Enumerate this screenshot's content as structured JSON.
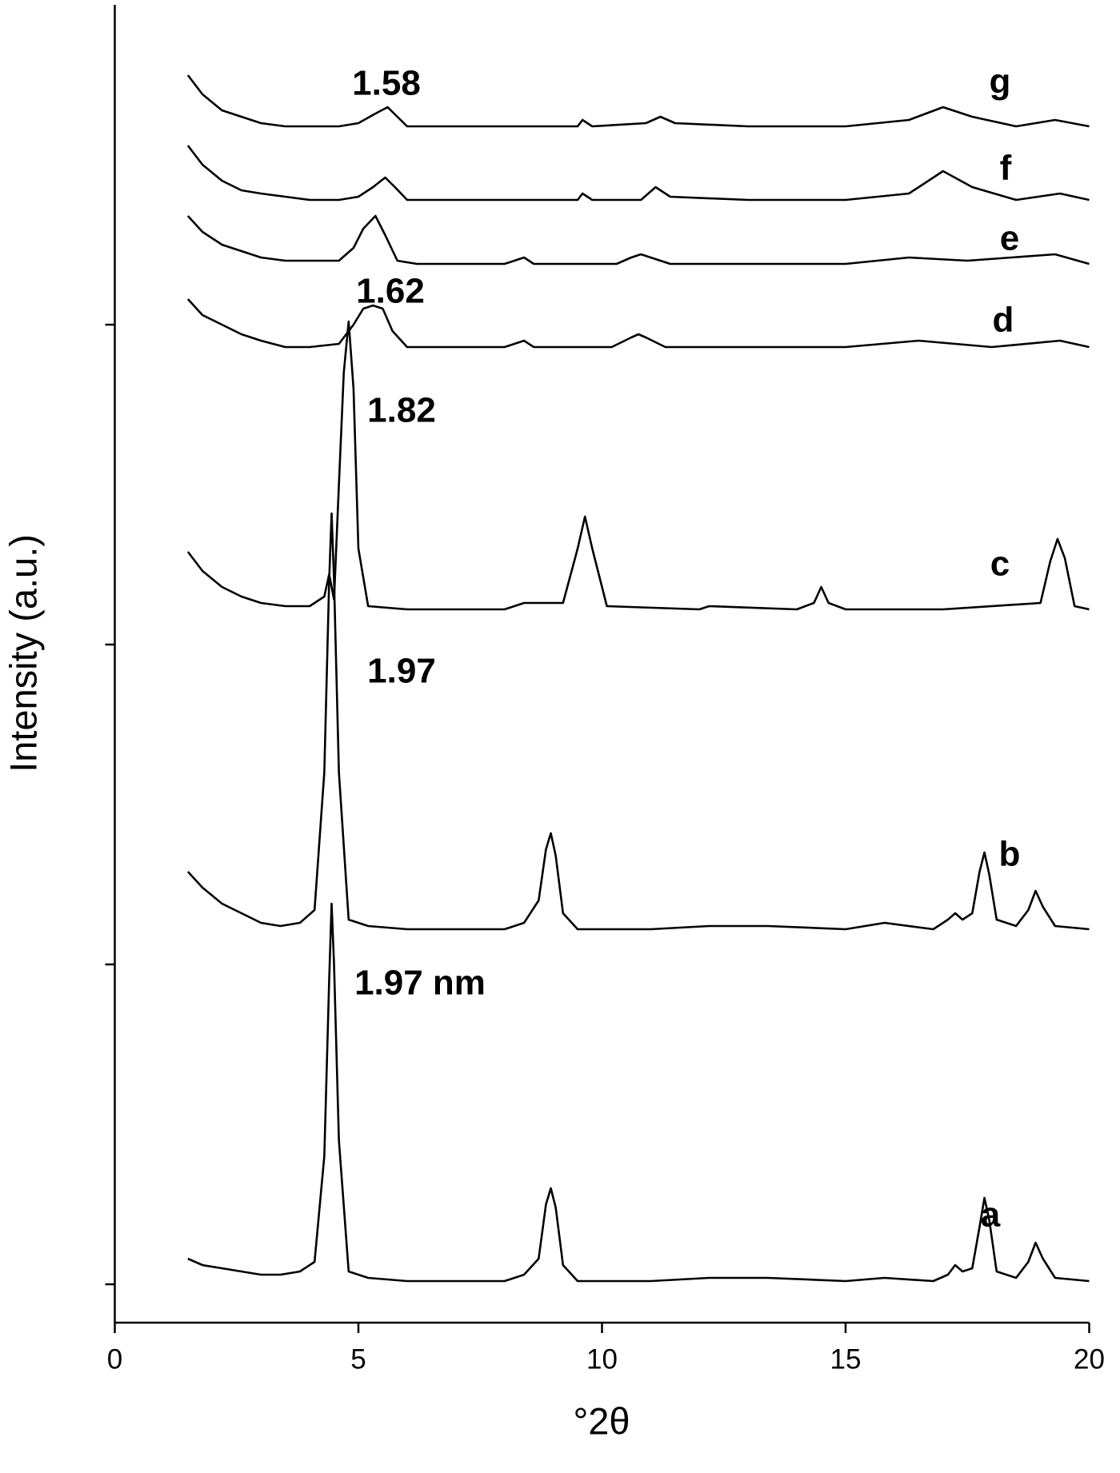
{
  "chart_data": {
    "type": "line",
    "x_label": "°2θ",
    "y_label": "Intensity (a.u.)",
    "xlim": [
      0,
      20
    ],
    "xticks": [
      0,
      5,
      10,
      15,
      20
    ],
    "ylim": [
      -0.12,
      4
    ],
    "yticks": [
      0,
      1,
      2,
      3
    ],
    "ytick_labels": false,
    "annotations": [
      "1.58",
      "1.62",
      "1.82",
      "1.97",
      "1.97 nm"
    ],
    "series": [
      {
        "name": "a",
        "color": "#000000",
        "x": [
          1.5,
          1.8,
          2.2,
          2.6,
          3.0,
          3.4,
          3.8,
          4.1,
          4.3,
          4.4,
          4.45,
          4.5,
          4.6,
          4.8,
          5.2,
          6,
          7,
          8,
          8.4,
          8.7,
          8.85,
          8.95,
          9.05,
          9.2,
          9.5,
          11,
          12.2,
          13.4,
          15,
          15.8,
          16.8,
          17.1,
          17.25,
          17.4,
          17.6,
          17.75,
          17.85,
          17.95,
          18.1,
          18.5,
          18.75,
          18.9,
          19.05,
          19.3,
          20
        ],
        "values": [
          0.08,
          0.06,
          0.05,
          0.04,
          0.03,
          0.03,
          0.04,
          0.07,
          0.4,
          0.95,
          1.19,
          1.0,
          0.45,
          0.04,
          0.02,
          0.01,
          0.01,
          0.01,
          0.03,
          0.08,
          0.25,
          0.3,
          0.24,
          0.06,
          0.01,
          0.01,
          0.02,
          0.02,
          0.01,
          0.02,
          0.01,
          0.03,
          0.06,
          0.04,
          0.05,
          0.18,
          0.27,
          0.2,
          0.04,
          0.02,
          0.07,
          0.13,
          0.08,
          0.02,
          0.01
        ]
      },
      {
        "name": "b",
        "color": "#000000",
        "x": [
          1.5,
          1.8,
          2.2,
          2.6,
          3.0,
          3.4,
          3.8,
          4.1,
          4.3,
          4.4,
          4.45,
          4.5,
          4.6,
          4.8,
          5.2,
          6,
          7,
          8,
          8.4,
          8.7,
          8.85,
          8.95,
          9.05,
          9.2,
          9.5,
          11,
          12.2,
          13.4,
          15,
          15.8,
          16.8,
          17.1,
          17.25,
          17.4,
          17.6,
          17.75,
          17.85,
          17.95,
          18.1,
          18.5,
          18.75,
          18.9,
          19.05,
          19.3,
          20
        ],
        "values": [
          1.29,
          1.24,
          1.19,
          1.16,
          1.13,
          1.12,
          1.13,
          1.17,
          1.6,
          2.2,
          2.41,
          2.2,
          1.6,
          1.14,
          1.12,
          1.11,
          1.11,
          1.11,
          1.13,
          1.2,
          1.36,
          1.41,
          1.34,
          1.16,
          1.11,
          1.11,
          1.12,
          1.12,
          1.11,
          1.13,
          1.11,
          1.14,
          1.16,
          1.14,
          1.16,
          1.29,
          1.35,
          1.28,
          1.14,
          1.12,
          1.17,
          1.23,
          1.18,
          1.12,
          1.11
        ]
      },
      {
        "name": "c",
        "color": "#000000",
        "x": [
          1.5,
          1.8,
          2.2,
          2.6,
          3.0,
          3.5,
          4.0,
          4.3,
          4.4,
          4.5,
          4.6,
          4.7,
          4.8,
          4.9,
          5.0,
          5.2,
          6,
          7,
          8,
          8.4,
          9.2,
          9.5,
          9.65,
          9.8,
          10.1,
          12,
          12.2,
          14,
          14.35,
          14.5,
          14.65,
          15,
          17,
          19.0,
          19.2,
          19.35,
          19.5,
          19.7,
          20
        ],
        "values": [
          2.29,
          2.23,
          2.18,
          2.15,
          2.13,
          2.12,
          2.12,
          2.15,
          2.22,
          2.14,
          2.5,
          2.85,
          3.01,
          2.8,
          2.3,
          2.12,
          2.11,
          2.11,
          2.11,
          2.13,
          2.13,
          2.3,
          2.4,
          2.3,
          2.12,
          2.11,
          2.12,
          2.11,
          2.13,
          2.18,
          2.13,
          2.11,
          2.11,
          2.13,
          2.26,
          2.33,
          2.27,
          2.12,
          2.11
        ]
      },
      {
        "name": "d",
        "color": "#000000",
        "x": [
          1.5,
          1.8,
          2.2,
          2.6,
          3.0,
          3.5,
          4.0,
          4.6,
          4.9,
          5.1,
          5.3,
          5.5,
          5.7,
          6.0,
          7,
          8,
          8.4,
          8.6,
          10.2,
          10.6,
          10.75,
          10.9,
          11.3,
          13,
          15,
          16.5,
          18,
          19.4,
          20
        ],
        "values": [
          3.08,
          3.03,
          3.0,
          2.97,
          2.95,
          2.93,
          2.93,
          2.94,
          3.0,
          3.05,
          3.06,
          3.05,
          2.98,
          2.93,
          2.93,
          2.93,
          2.95,
          2.93,
          2.93,
          2.96,
          2.97,
          2.96,
          2.93,
          2.93,
          2.93,
          2.95,
          2.93,
          2.95,
          2.93
        ]
      },
      {
        "name": "e",
        "color": "#000000",
        "x": [
          1.5,
          1.8,
          2.2,
          2.6,
          3.0,
          3.5,
          4.0,
          4.6,
          4.9,
          5.1,
          5.35,
          5.55,
          5.8,
          6.2,
          7,
          8,
          8.4,
          8.6,
          10.3,
          10.6,
          10.8,
          11.0,
          11.4,
          13,
          15,
          16.3,
          17.5,
          19.3,
          20
        ],
        "values": [
          3.34,
          3.29,
          3.25,
          3.23,
          3.21,
          3.2,
          3.2,
          3.2,
          3.24,
          3.3,
          3.34,
          3.28,
          3.2,
          3.19,
          3.19,
          3.19,
          3.21,
          3.19,
          3.19,
          3.21,
          3.22,
          3.21,
          3.19,
          3.19,
          3.19,
          3.21,
          3.2,
          3.22,
          3.19
        ]
      },
      {
        "name": "f",
        "color": "#000000",
        "x": [
          1.5,
          1.8,
          2.2,
          2.6,
          3.0,
          3.5,
          4.0,
          4.6,
          5.0,
          5.3,
          5.55,
          5.75,
          6.0,
          6.5,
          8,
          9.5,
          9.6,
          9.8,
          10.8,
          11.1,
          11.4,
          13,
          15,
          16.3,
          17,
          17.6,
          18.5,
          19.4,
          20
        ],
        "values": [
          3.56,
          3.5,
          3.45,
          3.42,
          3.41,
          3.4,
          3.39,
          3.39,
          3.4,
          3.43,
          3.46,
          3.43,
          3.39,
          3.39,
          3.39,
          3.39,
          3.41,
          3.39,
          3.39,
          3.43,
          3.4,
          3.39,
          3.39,
          3.41,
          3.48,
          3.43,
          3.39,
          3.41,
          3.39
        ]
      },
      {
        "name": "g",
        "color": "#000000",
        "x": [
          1.5,
          1.8,
          2.2,
          2.6,
          3.0,
          3.5,
          4.0,
          4.6,
          5.0,
          5.35,
          5.6,
          5.8,
          6.0,
          6.5,
          8,
          9.5,
          9.6,
          9.8,
          10.9,
          11.2,
          11.5,
          13,
          15,
          16.3,
          17,
          17.6,
          18.5,
          19.3,
          20
        ],
        "values": [
          3.78,
          3.72,
          3.67,
          3.65,
          3.63,
          3.62,
          3.62,
          3.62,
          3.63,
          3.66,
          3.68,
          3.65,
          3.62,
          3.62,
          3.62,
          3.62,
          3.64,
          3.62,
          3.63,
          3.65,
          3.63,
          3.62,
          3.62,
          3.64,
          3.68,
          3.65,
          3.62,
          3.64,
          3.62
        ]
      }
    ]
  }
}
